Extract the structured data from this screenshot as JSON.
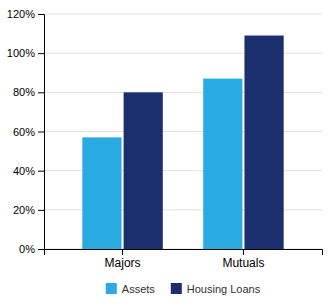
{
  "chart_data": {
    "type": "bar",
    "categories": [
      "Majors",
      "Mutuals"
    ],
    "series": [
      {
        "name": "Assets",
        "color": "#29ABE2",
        "values": [
          0.57,
          0.87
        ]
      },
      {
        "name": "Housing Loans",
        "color": "#1B2F6E",
        "values": [
          0.8,
          1.09
        ]
      }
    ],
    "ylim": [
      0,
      1.2
    ],
    "yticks": [
      {
        "value": 0,
        "label": "0%"
      },
      {
        "value": 0.2,
        "label": "20%"
      },
      {
        "value": 0.4,
        "label": "40%"
      },
      {
        "value": 0.6,
        "label": "60%"
      },
      {
        "value": 0.8,
        "label": "80%"
      },
      {
        "value": 1.0,
        "label": "100%"
      },
      {
        "value": 1.2,
        "label": "120%"
      }
    ],
    "grid": true,
    "legend": "bottom"
  }
}
